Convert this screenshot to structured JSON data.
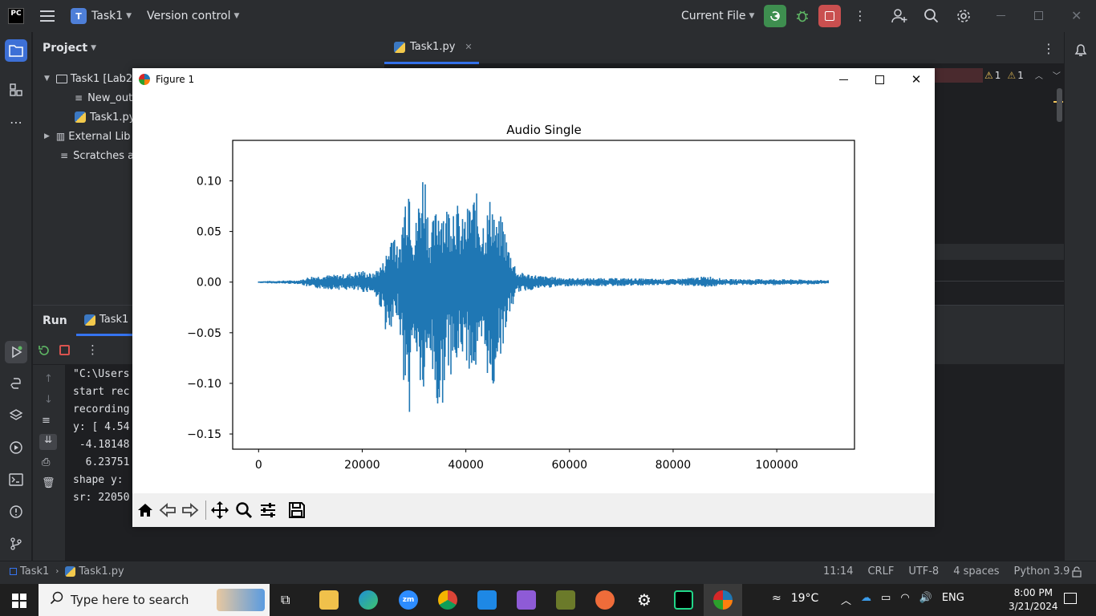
{
  "topbar": {
    "logo": "PC",
    "project_badge": "T",
    "project_name": "Task1",
    "version_control": "Version control",
    "run_config": "Current File"
  },
  "project_panel": {
    "title": "Project",
    "tree": [
      {
        "label": "Task1 [Lab2",
        "type": "folder"
      },
      {
        "label": "New_out",
        "type": "file"
      },
      {
        "label": "Task1.py",
        "type": "python"
      },
      {
        "label": "External Lib",
        "type": "library"
      },
      {
        "label": "Scratches a",
        "type": "scratch"
      }
    ]
  },
  "editor": {
    "tab_label": "Task1.py",
    "warnings": [
      "1",
      "1"
    ]
  },
  "run_panel": {
    "title": "Run",
    "tab_label": "Task1",
    "console": [
      "\"C:\\Users",
      "start rec",
      "recording",
      "y: [ 4.54",
      " -4.18148",
      "  6.23751",
      "shape y:",
      "sr: 22050"
    ]
  },
  "statusbar": {
    "breadcrumb_project": "Task1",
    "breadcrumb_file": "Task1.py",
    "position": "11:14",
    "line_sep": "CRLF",
    "encoding": "UTF-8",
    "indent": "4 spaces",
    "interpreter": "Python 3.9"
  },
  "figure": {
    "window_title": "Figure 1"
  },
  "chart_data": {
    "type": "line",
    "title": "Audio Single",
    "xlabel": "",
    "ylabel": "",
    "xlim": [
      -5000,
      115000
    ],
    "ylim": [
      -0.165,
      0.14
    ],
    "xticks": [
      0,
      20000,
      40000,
      60000,
      80000,
      100000
    ],
    "xtick_labels": [
      "0",
      "20000",
      "40000",
      "60000",
      "80000",
      "100000"
    ],
    "yticks": [
      0.1,
      0.05,
      0.0,
      -0.05,
      -0.1,
      -0.15
    ],
    "ytick_labels": [
      "0.10",
      "0.05",
      "0.00",
      "−0.05",
      "−0.10",
      "−0.15"
    ],
    "color": "#1f77b4",
    "series": [
      {
        "x": [
          0,
          8000,
          10000,
          17000,
          20000,
          22000,
          24000,
          25000,
          26000,
          27000,
          28000,
          29000,
          30000,
          31000,
          32000,
          33000,
          34000,
          35000,
          36000,
          37000,
          38000,
          39000,
          40000,
          41000,
          42000,
          43000,
          44000,
          45000,
          46000,
          47000,
          48000,
          50000,
          55000,
          60000,
          70000,
          80000,
          87000,
          90000,
          100000,
          110000
        ],
        "amp_pos": [
          0.001,
          0.002,
          0.006,
          0.008,
          0.012,
          0.008,
          0.02,
          0.035,
          0.065,
          0.025,
          0.08,
          0.124,
          0.045,
          0.09,
          0.127,
          0.05,
          0.068,
          0.09,
          0.075,
          0.083,
          0.09,
          0.06,
          0.07,
          0.085,
          0.09,
          0.065,
          0.07,
          0.092,
          0.055,
          0.07,
          0.04,
          0.01,
          0.006,
          0.004,
          0.004,
          0.003,
          0.006,
          0.003,
          0.003,
          0.002
        ],
        "amp_neg": [
          0.001,
          0.002,
          0.006,
          0.008,
          0.01,
          0.01,
          0.03,
          0.066,
          0.05,
          0.03,
          0.1,
          0.143,
          0.06,
          0.1,
          0.13,
          0.07,
          0.118,
          0.154,
          0.09,
          0.09,
          0.1,
          0.07,
          0.08,
          0.09,
          0.095,
          0.08,
          0.085,
          0.132,
          0.075,
          0.07,
          0.04,
          0.01,
          0.006,
          0.004,
          0.004,
          0.003,
          0.005,
          0.003,
          0.003,
          0.002
        ]
      }
    ]
  }
}
